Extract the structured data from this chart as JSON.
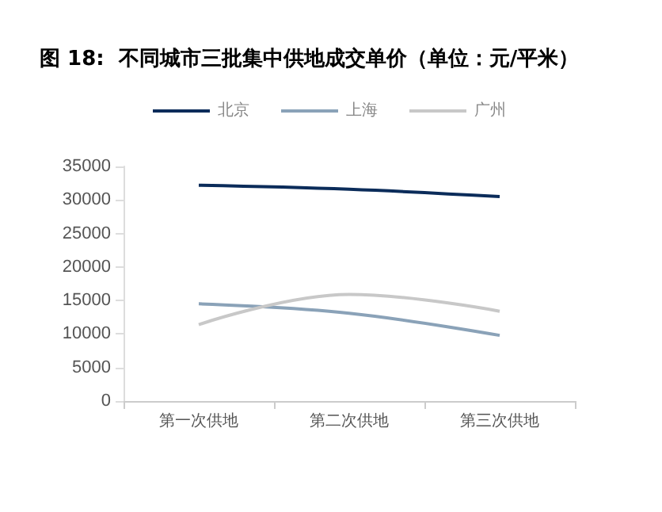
{
  "chart_data": {
    "type": "line",
    "title": "图 18:  不同城市三批集中供地成交单价（单位：元/平米）",
    "categories": [
      "第一次供地",
      "第二次供地",
      "第三次供地"
    ],
    "series": [
      {
        "name": "北京",
        "color": "#0b2c5a",
        "values": [
          32200,
          31600,
          30500
        ]
      },
      {
        "name": "上海",
        "color": "#8aa2b8",
        "values": [
          14500,
          13100,
          9800
        ]
      },
      {
        "name": "广州",
        "color": "#c8c8c8",
        "values": [
          11400,
          15900,
          13400
        ]
      }
    ],
    "ylim": [
      0,
      35000
    ],
    "yticks": [
      0,
      5000,
      10000,
      15000,
      20000,
      25000,
      30000,
      35000
    ],
    "grid": false,
    "legend": "top",
    "marker": "none",
    "line_style": "solid"
  }
}
